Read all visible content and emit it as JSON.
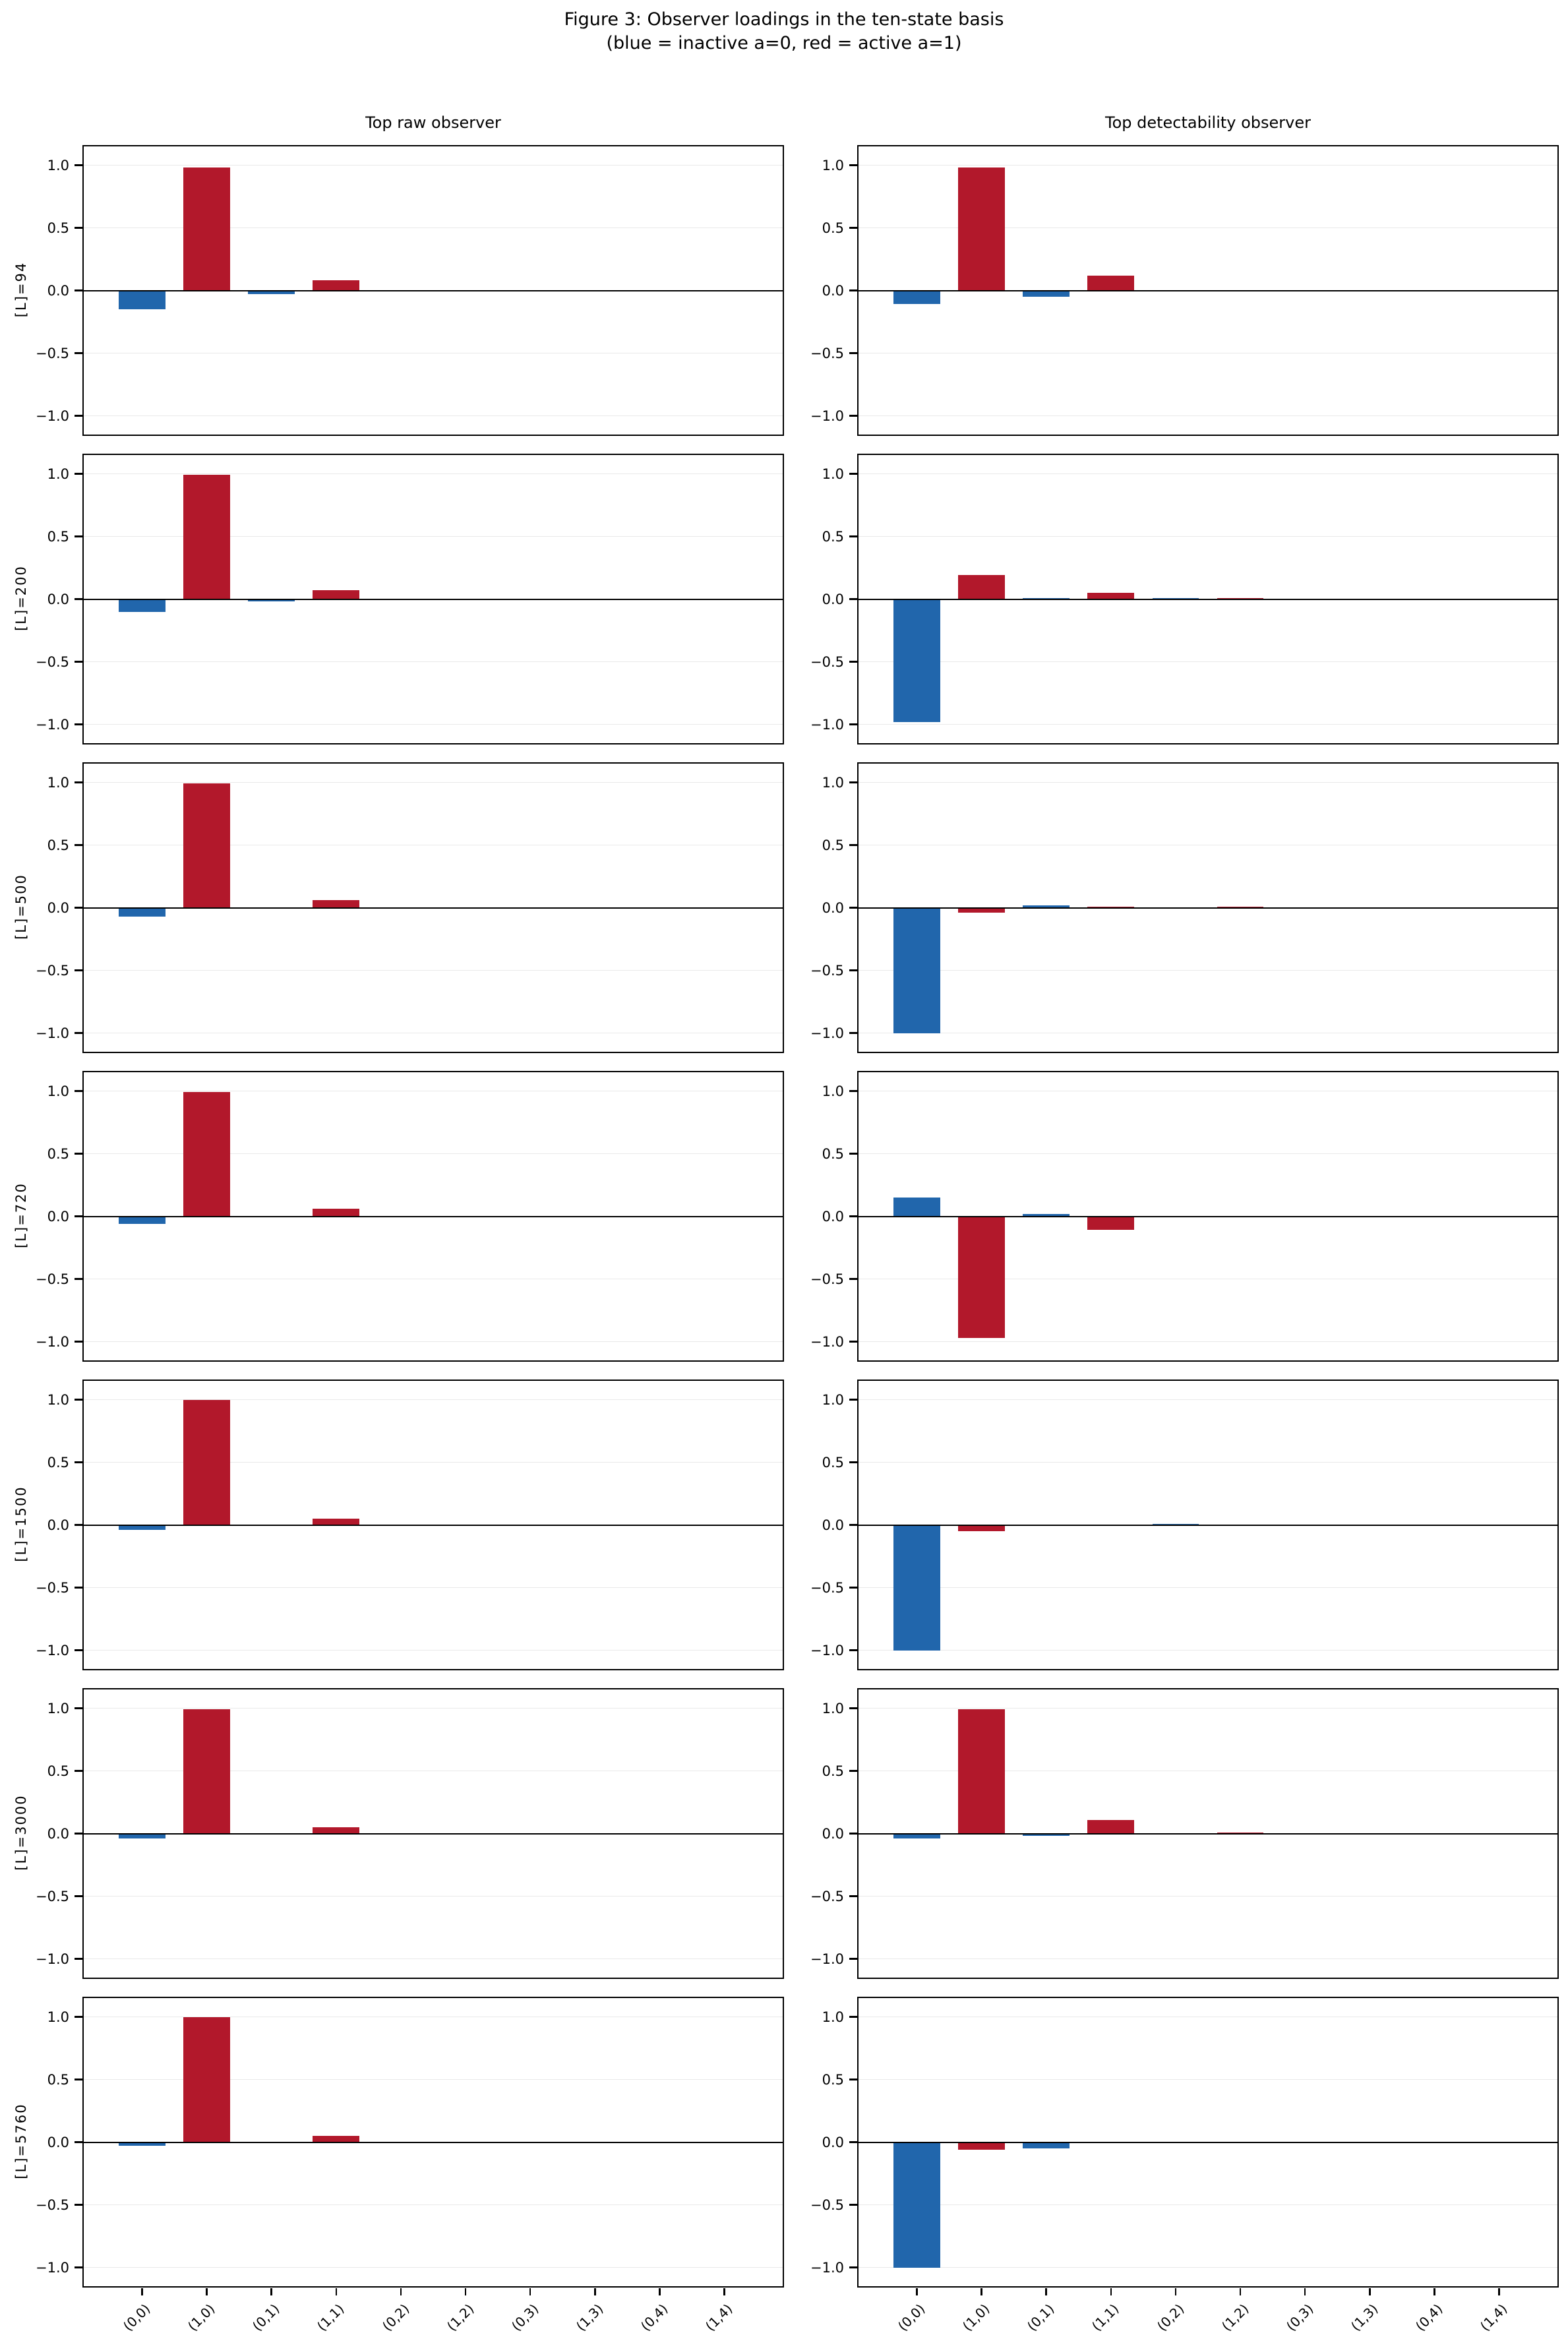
{
  "figure": {
    "title_line1": "Figure 3: Observer loadings in the ten-state basis",
    "title_line2": "(blue = inactive a=0, red = active a=1)"
  },
  "columns": [
    "Top raw observer",
    "Top detectability observer"
  ],
  "palette": {
    "inactive_a0_blue": "#2166ac",
    "active_a1_red": "#b2182b",
    "grid": "#e9e9e9",
    "axis": "#000000",
    "background": "#ffffff"
  },
  "chart_data": {
    "type": "bar",
    "categories": [
      "(0,0)",
      "(1,0)",
      "(0,1)",
      "(1,1)",
      "(0,2)",
      "(1,2)",
      "(0,3)",
      "(1,3)",
      "(0,4)",
      "(1,4)"
    ],
    "bar_color_rule": "even index (a=0) blue, odd index (a=1) red",
    "y_tick_labels": [
      "1.0",
      "0.5",
      "0.0",
      "−0.5",
      "−1.0"
    ],
    "y_tick_values": [
      1.0,
      0.5,
      0.0,
      -0.5,
      -1.0
    ],
    "ylim": [
      -1.15,
      1.15
    ],
    "grid": "horizontal light gray at y ticks, solid black line at 0",
    "legend": "none",
    "series_names": [
      "raw",
      "detectability"
    ],
    "rows": [
      {
        "label": "[L]=94",
        "raw": [
          -0.15,
          0.98,
          -0.03,
          0.08,
          0,
          0,
          0,
          0,
          0,
          0
        ],
        "detectability": [
          -0.11,
          0.98,
          -0.05,
          0.12,
          0,
          0,
          0,
          0,
          0,
          0
        ]
      },
      {
        "label": "[L]=200",
        "raw": [
          -0.1,
          0.99,
          -0.02,
          0.07,
          0,
          0,
          0,
          0,
          0,
          0
        ],
        "detectability": [
          -0.98,
          0.19,
          0.01,
          0.05,
          0.01,
          0.01,
          0,
          0,
          0,
          0
        ]
      },
      {
        "label": "[L]=500",
        "raw": [
          -0.07,
          0.99,
          -0.01,
          0.06,
          0,
          0,
          0,
          0,
          0,
          0
        ],
        "detectability": [
          -1.0,
          -0.04,
          0.02,
          0.01,
          -0.01,
          0.01,
          0,
          0,
          0,
          0
        ]
      },
      {
        "label": "[L]=720",
        "raw": [
          -0.06,
          0.99,
          -0.01,
          0.06,
          0,
          0,
          0,
          0,
          0,
          0
        ],
        "detectability": [
          0.15,
          -0.97,
          0.02,
          -0.11,
          0,
          0,
          0,
          0,
          0,
          0
        ]
      },
      {
        "label": "[L]=1500",
        "raw": [
          -0.04,
          1.0,
          0,
          0.05,
          0,
          0,
          0,
          0,
          0,
          0
        ],
        "detectability": [
          -1.0,
          -0.05,
          0,
          0,
          0.01,
          0,
          0,
          0,
          0,
          0
        ]
      },
      {
        "label": "[L]=3000",
        "raw": [
          -0.04,
          0.99,
          0,
          0.05,
          0,
          0,
          0,
          0,
          0,
          0
        ],
        "detectability": [
          -0.04,
          0.99,
          -0.02,
          0.11,
          0,
          0.01,
          0,
          0,
          0,
          0
        ]
      },
      {
        "label": "[L]=5760",
        "raw": [
          -0.03,
          1.0,
          0,
          0.05,
          0,
          0,
          0,
          0,
          0,
          0
        ],
        "detectability": [
          -1.0,
          -0.06,
          -0.05,
          0,
          0,
          0,
          0,
          0,
          0,
          0
        ]
      }
    ]
  }
}
